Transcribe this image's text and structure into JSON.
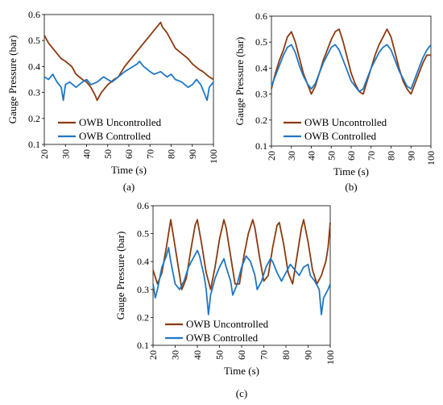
{
  "chart_data": [
    {
      "type": "line",
      "panel_label": "(a)",
      "xlabel": "Time (s)",
      "ylabel": "Gauge Pressure (bar)",
      "xlim": [
        20,
        100
      ],
      "ylim": [
        0.1,
        0.6
      ],
      "xticks": [
        20,
        30,
        40,
        50,
        60,
        70,
        80,
        90,
        100
      ],
      "yticks": [
        0.1,
        0.2,
        0.3,
        0.4,
        0.5,
        0.6
      ],
      "grid": false,
      "legend": "bottom-left",
      "series": [
        {
          "name": "OWB Uncontrolled",
          "color": "#8B3A0F",
          "points": [
            [
              20,
              0.52
            ],
            [
              22,
              0.49
            ],
            [
              25,
              0.46
            ],
            [
              28,
              0.43
            ],
            [
              30,
              0.42
            ],
            [
              33,
              0.4
            ],
            [
              35,
              0.37
            ],
            [
              38,
              0.35
            ],
            [
              40,
              0.34
            ],
            [
              42,
              0.32
            ],
            [
              44,
              0.29
            ],
            [
              45,
              0.27
            ],
            [
              47,
              0.3
            ],
            [
              50,
              0.33
            ],
            [
              53,
              0.35
            ],
            [
              55,
              0.36
            ],
            [
              58,
              0.4
            ],
            [
              60,
              0.42
            ],
            [
              63,
              0.45
            ],
            [
              65,
              0.47
            ],
            [
              68,
              0.5
            ],
            [
              70,
              0.52
            ],
            [
              72,
              0.54
            ],
            [
              74,
              0.56
            ],
            [
              75,
              0.57
            ],
            [
              76,
              0.55
            ],
            [
              78,
              0.53
            ],
            [
              80,
              0.5
            ],
            [
              82,
              0.47
            ],
            [
              85,
              0.45
            ],
            [
              88,
              0.43
            ],
            [
              90,
              0.41
            ],
            [
              93,
              0.39
            ],
            [
              95,
              0.38
            ],
            [
              98,
              0.36
            ],
            [
              100,
              0.35
            ]
          ]
        },
        {
          "name": "OWB Controlled",
          "color": "#1F77C4",
          "points": [
            [
              20,
              0.36
            ],
            [
              22,
              0.35
            ],
            [
              24,
              0.37
            ],
            [
              26,
              0.34
            ],
            [
              28,
              0.32
            ],
            [
              29,
              0.27
            ],
            [
              30,
              0.33
            ],
            [
              32,
              0.34
            ],
            [
              35,
              0.32
            ],
            [
              38,
              0.34
            ],
            [
              40,
              0.35
            ],
            [
              42,
              0.33
            ],
            [
              45,
              0.34
            ],
            [
              48,
              0.36
            ],
            [
              50,
              0.35
            ],
            [
              52,
              0.34
            ],
            [
              55,
              0.36
            ],
            [
              58,
              0.38
            ],
            [
              60,
              0.39
            ],
            [
              62,
              0.4
            ],
            [
              64,
              0.41
            ],
            [
              65,
              0.42
            ],
            [
              67,
              0.4
            ],
            [
              70,
              0.38
            ],
            [
              72,
              0.37
            ],
            [
              75,
              0.38
            ],
            [
              78,
              0.36
            ],
            [
              80,
              0.37
            ],
            [
              82,
              0.35
            ],
            [
              85,
              0.34
            ],
            [
              88,
              0.32
            ],
            [
              90,
              0.33
            ],
            [
              92,
              0.35
            ],
            [
              94,
              0.33
            ],
            [
              96,
              0.29
            ],
            [
              97,
              0.27
            ],
            [
              98,
              0.32
            ],
            [
              100,
              0.34
            ]
          ]
        }
      ]
    },
    {
      "type": "line",
      "panel_label": "(b)",
      "xlabel": "Time (s)",
      "ylabel": "Gauge Pressure (bar)",
      "xlim": [
        20,
        100
      ],
      "ylim": [
        0.1,
        0.6
      ],
      "xticks": [
        20,
        30,
        40,
        50,
        60,
        70,
        80,
        90,
        100
      ],
      "yticks": [
        0.1,
        0.2,
        0.3,
        0.4,
        0.5,
        0.6
      ],
      "grid": false,
      "legend": "bottom-left",
      "series": [
        {
          "name": "OWB Uncontrolled",
          "color": "#8B3A0F",
          "points": [
            [
              20,
              0.32
            ],
            [
              22,
              0.38
            ],
            [
              24,
              0.43
            ],
            [
              26,
              0.47
            ],
            [
              28,
              0.52
            ],
            [
              30,
              0.54
            ],
            [
              32,
              0.5
            ],
            [
              34,
              0.44
            ],
            [
              36,
              0.38
            ],
            [
              38,
              0.34
            ],
            [
              40,
              0.3
            ],
            [
              42,
              0.33
            ],
            [
              44,
              0.38
            ],
            [
              46,
              0.43
            ],
            [
              48,
              0.47
            ],
            [
              50,
              0.51
            ],
            [
              52,
              0.54
            ],
            [
              54,
              0.55
            ],
            [
              56,
              0.5
            ],
            [
              58,
              0.44
            ],
            [
              60,
              0.38
            ],
            [
              62,
              0.34
            ],
            [
              64,
              0.31
            ],
            [
              66,
              0.3
            ],
            [
              68,
              0.35
            ],
            [
              70,
              0.4
            ],
            [
              72,
              0.45
            ],
            [
              74,
              0.49
            ],
            [
              76,
              0.52
            ],
            [
              78,
              0.55
            ],
            [
              80,
              0.52
            ],
            [
              82,
              0.46
            ],
            [
              84,
              0.4
            ],
            [
              86,
              0.35
            ],
            [
              88,
              0.32
            ],
            [
              90,
              0.3
            ],
            [
              92,
              0.34
            ],
            [
              94,
              0.38
            ],
            [
              96,
              0.42
            ],
            [
              98,
              0.45
            ],
            [
              100,
              0.45
            ]
          ]
        },
        {
          "name": "OWB Controlled",
          "color": "#1F77C4",
          "points": [
            [
              20,
              0.33
            ],
            [
              22,
              0.37
            ],
            [
              24,
              0.41
            ],
            [
              26,
              0.45
            ],
            [
              28,
              0.48
            ],
            [
              30,
              0.49
            ],
            [
              32,
              0.46
            ],
            [
              34,
              0.41
            ],
            [
              36,
              0.37
            ],
            [
              38,
              0.34
            ],
            [
              40,
              0.32
            ],
            [
              42,
              0.34
            ],
            [
              44,
              0.38
            ],
            [
              46,
              0.42
            ],
            [
              48,
              0.45
            ],
            [
              50,
              0.48
            ],
            [
              52,
              0.49
            ],
            [
              54,
              0.47
            ],
            [
              56,
              0.43
            ],
            [
              58,
              0.39
            ],
            [
              60,
              0.35
            ],
            [
              62,
              0.33
            ],
            [
              64,
              0.31
            ],
            [
              66,
              0.32
            ],
            [
              68,
              0.36
            ],
            [
              70,
              0.4
            ],
            [
              72,
              0.43
            ],
            [
              74,
              0.46
            ],
            [
              76,
              0.48
            ],
            [
              78,
              0.49
            ],
            [
              80,
              0.47
            ],
            [
              82,
              0.43
            ],
            [
              84,
              0.39
            ],
            [
              86,
              0.36
            ],
            [
              88,
              0.33
            ],
            [
              90,
              0.32
            ],
            [
              92,
              0.36
            ],
            [
              94,
              0.4
            ],
            [
              96,
              0.44
            ],
            [
              98,
              0.47
            ],
            [
              100,
              0.49
            ]
          ]
        }
      ]
    },
    {
      "type": "line",
      "panel_label": "(c)",
      "xlabel": "Time (s)",
      "ylabel": "Gauge Pressure (bar)",
      "xlim": [
        20,
        100
      ],
      "ylim": [
        0.1,
        0.6
      ],
      "xticks": [
        20,
        30,
        40,
        50,
        60,
        70,
        80,
        90,
        100
      ],
      "yticks": [
        0.1,
        0.2,
        0.3,
        0.4,
        0.5,
        0.6
      ],
      "grid": false,
      "legend": "bottom-left",
      "series": [
        {
          "name": "OWB Uncontrolled",
          "color": "#8B3A0F",
          "points": [
            [
              20,
              0.37
            ],
            [
              22,
              0.32
            ],
            [
              24,
              0.36
            ],
            [
              26,
              0.45
            ],
            [
              28,
              0.55
            ],
            [
              29,
              0.5
            ],
            [
              31,
              0.4
            ],
            [
              33,
              0.3
            ],
            [
              35,
              0.34
            ],
            [
              37,
              0.44
            ],
            [
              39,
              0.53
            ],
            [
              40,
              0.55
            ],
            [
              42,
              0.46
            ],
            [
              44,
              0.36
            ],
            [
              46,
              0.3
            ],
            [
              48,
              0.38
            ],
            [
              50,
              0.48
            ],
            [
              52,
              0.55
            ],
            [
              53,
              0.52
            ],
            [
              55,
              0.42
            ],
            [
              57,
              0.32
            ],
            [
              59,
              0.32
            ],
            [
              61,
              0.42
            ],
            [
              63,
              0.5
            ],
            [
              65,
              0.55
            ],
            [
              66,
              0.52
            ],
            [
              68,
              0.42
            ],
            [
              70,
              0.33
            ],
            [
              72,
              0.35
            ],
            [
              74,
              0.45
            ],
            [
              76,
              0.53
            ],
            [
              77,
              0.54
            ],
            [
              79,
              0.46
            ],
            [
              81,
              0.36
            ],
            [
              83,
              0.32
            ],
            [
              85,
              0.42
            ],
            [
              87,
              0.52
            ],
            [
              88,
              0.55
            ],
            [
              90,
              0.47
            ],
            [
              92,
              0.37
            ],
            [
              94,
              0.32
            ],
            [
              96,
              0.35
            ],
            [
              98,
              0.4
            ],
            [
              99,
              0.45
            ],
            [
              100,
              0.54
            ]
          ]
        },
        {
          "name": "OWB Controlled",
          "color": "#1F77C4",
          "points": [
            [
              20,
              0.32
            ],
            [
              21,
              0.27
            ],
            [
              22,
              0.3
            ],
            [
              24,
              0.38
            ],
            [
              26,
              0.42
            ],
            [
              27,
              0.45
            ],
            [
              28,
              0.4
            ],
            [
              30,
              0.32
            ],
            [
              32,
              0.3
            ],
            [
              34,
              0.33
            ],
            [
              36,
              0.38
            ],
            [
              38,
              0.41
            ],
            [
              40,
              0.44
            ],
            [
              41,
              0.42
            ],
            [
              43,
              0.35
            ],
            [
              44,
              0.3
            ],
            [
              45,
              0.21
            ],
            [
              46,
              0.28
            ],
            [
              48,
              0.34
            ],
            [
              50,
              0.38
            ],
            [
              52,
              0.41
            ],
            [
              53,
              0.38
            ],
            [
              55,
              0.33
            ],
            [
              56,
              0.28
            ],
            [
              58,
              0.32
            ],
            [
              60,
              0.38
            ],
            [
              62,
              0.42
            ],
            [
              64,
              0.4
            ],
            [
              66,
              0.35
            ],
            [
              67,
              0.3
            ],
            [
              69,
              0.33
            ],
            [
              71,
              0.38
            ],
            [
              73,
              0.41
            ],
            [
              74,
              0.4
            ],
            [
              76,
              0.36
            ],
            [
              78,
              0.33
            ],
            [
              80,
              0.36
            ],
            [
              82,
              0.39
            ],
            [
              84,
              0.37
            ],
            [
              86,
              0.35
            ],
            [
              88,
              0.38
            ],
            [
              90,
              0.39
            ],
            [
              91,
              0.35
            ],
            [
              93,
              0.33
            ],
            [
              95,
              0.3
            ],
            [
              96,
              0.21
            ],
            [
              97,
              0.27
            ],
            [
              99,
              0.3
            ],
            [
              100,
              0.32
            ]
          ]
        }
      ]
    }
  ]
}
